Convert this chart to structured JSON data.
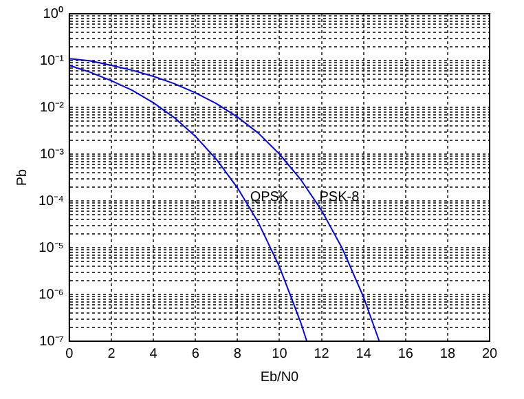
{
  "chart_data": {
    "type": "line",
    "xlabel": "Eb/N0",
    "ylabel": "Pb",
    "log": "y",
    "grid": true,
    "legend": false,
    "marker": "none",
    "line_style": "solid",
    "xlim": [
      0,
      20
    ],
    "xticks": [
      0,
      2,
      4,
      6,
      8,
      10,
      12,
      14,
      16,
      18,
      20
    ],
    "ylim": [
      1e-07,
      1
    ],
    "yticks": [
      {
        "value": 1e-07,
        "label": "10⁻⁷"
      },
      {
        "value": 2e-07,
        "label": null
      },
      {
        "value": 3e-07,
        "label": null
      },
      {
        "value": 4e-07,
        "label": null
      },
      {
        "value": 5e-07,
        "label": null
      },
      {
        "value": 6e-07,
        "label": null
      },
      {
        "value": 7e-07,
        "label": null
      },
      {
        "value": 8e-07,
        "label": null
      },
      {
        "value": 9e-07,
        "label": null
      },
      {
        "value": 1e-06,
        "label": "10⁻⁶"
      },
      {
        "value": 2e-06,
        "label": null
      },
      {
        "value": 3e-06,
        "label": null
      },
      {
        "value": 4e-06,
        "label": null
      },
      {
        "value": 5e-06,
        "label": null
      },
      {
        "value": 6e-06,
        "label": null
      },
      {
        "value": 7e-06,
        "label": null
      },
      {
        "value": 8e-06,
        "label": null
      },
      {
        "value": 9e-06,
        "label": null
      },
      {
        "value": 1e-05,
        "label": "10⁻⁵"
      },
      {
        "value": 2e-05,
        "label": null
      },
      {
        "value": 3e-05,
        "label": null
      },
      {
        "value": 4e-05,
        "label": null
      },
      {
        "value": 5e-05,
        "label": null
      },
      {
        "value": 6e-05,
        "label": null
      },
      {
        "value": 7e-05,
        "label": null
      },
      {
        "value": 8e-05,
        "label": null
      },
      {
        "value": 9e-05,
        "label": null
      },
      {
        "value": 0.0001,
        "label": "10⁻⁴"
      },
      {
        "value": 0.0002,
        "label": null
      },
      {
        "value": 0.0003,
        "label": null
      },
      {
        "value": 0.0004,
        "label": null
      },
      {
        "value": 0.0005,
        "label": null
      },
      {
        "value": 0.0006,
        "label": null
      },
      {
        "value": 0.0007,
        "label": null
      },
      {
        "value": 0.0008,
        "label": null
      },
      {
        "value": 0.0009,
        "label": null
      },
      {
        "value": 0.001,
        "label": "10⁻³"
      },
      {
        "value": 0.002,
        "label": null
      },
      {
        "value": 0.003,
        "label": null
      },
      {
        "value": 0.004,
        "label": null
      },
      {
        "value": 0.005,
        "label": null
      },
      {
        "value": 0.006,
        "label": null
      },
      {
        "value": 0.007,
        "label": null
      },
      {
        "value": 0.008,
        "label": null
      },
      {
        "value": 0.009,
        "label": null
      },
      {
        "value": 0.01,
        "label": "10⁻²"
      },
      {
        "value": 0.02,
        "label": null
      },
      {
        "value": 0.03,
        "label": null
      },
      {
        "value": 0.04,
        "label": null
      },
      {
        "value": 0.05,
        "label": null
      },
      {
        "value": 0.06,
        "label": null
      },
      {
        "value": 0.07,
        "label": null
      },
      {
        "value": 0.08,
        "label": null
      },
      {
        "value": 0.09,
        "label": null
      },
      {
        "value": 0.1,
        "label": "10⁻¹"
      },
      {
        "value": 0.2,
        "label": null
      },
      {
        "value": 0.3,
        "label": null
      },
      {
        "value": 0.4,
        "label": null
      },
      {
        "value": 0.5,
        "label": null
      },
      {
        "value": 0.6,
        "label": null
      },
      {
        "value": 0.7,
        "label": null
      },
      {
        "value": 0.8,
        "label": null
      },
      {
        "value": 0.9,
        "label": null
      },
      {
        "value": 1,
        "label": "10⁰"
      }
    ],
    "annotations": [
      {
        "text": "QPSK",
        "x": 8.6,
        "y": 0.00012
      },
      {
        "text": "PSK-8",
        "x": 11.9,
        "y": 0.00012
      }
    ],
    "series": [
      {
        "color": "#0000ff",
        "x": [
          0,
          1,
          2,
          3,
          4,
          5,
          6,
          7,
          8,
          9,
          10,
          11,
          11.3
        ],
        "values": [
          0.079,
          0.056,
          0.037,
          0.023,
          0.0125,
          0.006,
          0.0024,
          0.00077,
          0.00019,
          3.4e-05,
          3.9e-06,
          2.6e-07,
          1e-07
        ]
      },
      {
        "color": "#0000ff",
        "x": [
          0,
          1,
          2,
          3,
          4,
          5,
          6,
          7,
          8,
          9,
          10,
          11,
          12,
          13,
          14,
          14.75
        ],
        "values": [
          0.11,
          0.098,
          0.079,
          0.062,
          0.046,
          0.032,
          0.0205,
          0.012,
          0.0062,
          0.0028,
          0.001,
          0.00029,
          6.3e-05,
          9.4e-06,
          8.8e-07,
          1e-07
        ]
      }
    ]
  }
}
